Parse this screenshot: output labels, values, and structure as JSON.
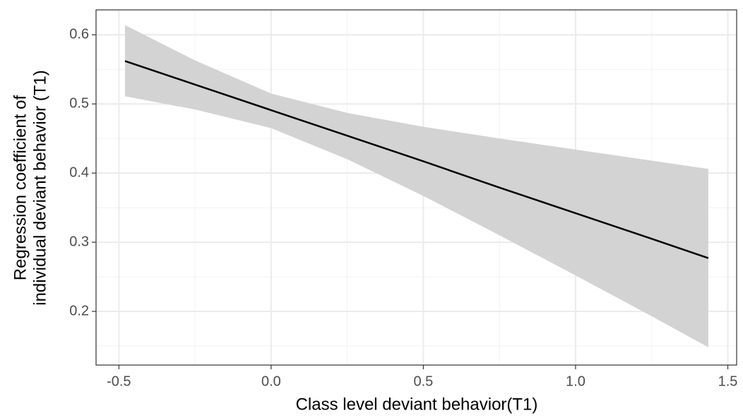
{
  "chart_data": {
    "type": "line",
    "x": [
      -0.48,
      -0.25,
      0,
      0.25,
      0.5,
      0.75,
      1.0,
      1.25,
      1.436
    ],
    "values": [
      0.562,
      0.528,
      0.491,
      0.454,
      0.417,
      0.379,
      0.342,
      0.305,
      0.277
    ],
    "band": {
      "upper": [
        0.614,
        0.563,
        0.515,
        0.487,
        0.467,
        0.45,
        0.434,
        0.418,
        0.406
      ],
      "lower": [
        0.511,
        0.492,
        0.465,
        0.42,
        0.367,
        0.31,
        0.252,
        0.193,
        0.148
      ],
      "color": "#d3d3d3"
    },
    "color": "#000000",
    "xlabel": "Class level deviant behavior(T1)",
    "ylabel": [
      "Regression coefficient of",
      "individual deviant behavior (T1)"
    ],
    "xlim": [
      -0.575,
      1.529
    ],
    "ylim": [
      0.1224,
      0.636
    ],
    "xticks": [
      -0.5,
      {
        "value": 0,
        "label": "0.0"
      },
      0.5,
      {
        "value": 1,
        "label": "1.0"
      },
      1.5
    ],
    "yticks": [
      0.2,
      0.3,
      0.4,
      0.5,
      0.6
    ],
    "xminor": [
      -0.25,
      0.25,
      0.75,
      1.25
    ],
    "yminor": [
      0.15,
      0.25,
      0.35,
      0.45,
      0.55
    ],
    "grid": true
  }
}
